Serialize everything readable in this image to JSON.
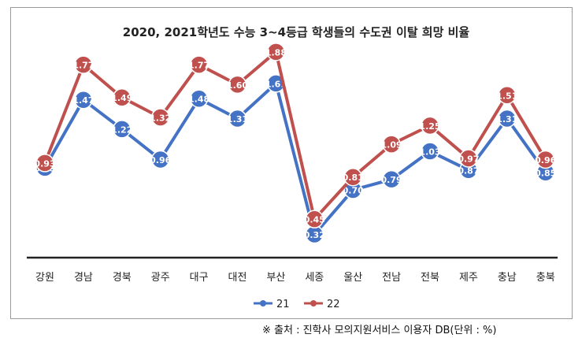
{
  "chart_data": {
    "type": "line",
    "title": "2020, 2021학년도 수능 3~4등급 학생들의 수도권 이탈 희망 비율",
    "categories": [
      "강원",
      "경남",
      "경북",
      "광주",
      "대구",
      "대전",
      "부산",
      "세종",
      "울산",
      "전남",
      "전북",
      "제주",
      "충남",
      "충북"
    ],
    "series": [
      {
        "name": "21",
        "color": "#4472c4",
        "values": [
          0.89,
          1.47,
          1.22,
          0.96,
          1.48,
          1.31,
          1.61,
          0.32,
          0.7,
          0.79,
          1.03,
          0.87,
          1.31,
          0.85
        ]
      },
      {
        "name": "22",
        "color": "#c0504d",
        "values": [
          0.93,
          1.77,
          1.49,
          1.32,
          1.77,
          1.6,
          1.88,
          0.45,
          0.81,
          1.09,
          1.25,
          0.97,
          1.51,
          0.96
        ]
      }
    ],
    "ylim": [
      0,
      2.0
    ],
    "grid": false,
    "legend_position": "bottom"
  },
  "source_note": "※ 출처 : 진학사 모의지원서비스 이용자 DB(단위 : %)"
}
